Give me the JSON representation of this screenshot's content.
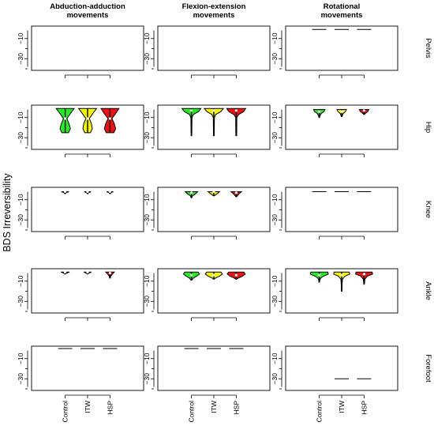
{
  "chart_data": {
    "type": "violin",
    "ylabel": "BDS Irreversibility",
    "columns": [
      "Abduction-adduction\nmovements",
      "Flexion-extension\nmovements",
      "Rotational\nmovements"
    ],
    "rows": [
      "Pelvis",
      "Hip",
      "Knee",
      "Ankle",
      "Forefoot"
    ],
    "groups": [
      "Control",
      "ITW",
      "HSP"
    ],
    "group_colors": [
      "#22ee22",
      "#f5f500",
      "#f01010"
    ],
    "yticks": [
      -10,
      -30
    ],
    "ylim": [
      -40,
      0
    ],
    "panels": [
      [
        {
          "violins": []
        },
        {
          "violins": []
        },
        {
          "violins": [
            {
              "group": "Control",
              "kind": "line",
              "value": -1
            },
            {
              "group": "ITW",
              "kind": "line",
              "value": -1
            },
            {
              "group": "HSP",
              "kind": "line",
              "value": -1
            }
          ]
        }
      ],
      [
        {
          "violins": [
            {
              "group": "Control",
              "kind": "violin",
              "top": -1,
              "bottom": -25,
              "median": -11,
              "profile": [
                [
                  -1,
                  0.95
                ],
                [
                  -6,
                  0.55
                ],
                [
                  -11,
                  0.18
                ],
                [
                  -16,
                  0.4
                ],
                [
                  -21,
                  0.55
                ],
                [
                  -25,
                  0.35
                ]
              ]
            },
            {
              "group": "ITW",
              "kind": "violin",
              "top": -1,
              "bottom": -25,
              "median": -11,
              "profile": [
                [
                  -1,
                  0.95
                ],
                [
                  -6,
                  0.55
                ],
                [
                  -11,
                  0.18
                ],
                [
                  -16,
                  0.4
                ],
                [
                  -21,
                  0.5
                ],
                [
                  -25,
                  0.3
                ]
              ]
            },
            {
              "group": "HSP",
              "kind": "violin",
              "top": -1,
              "bottom": -25,
              "median": -11,
              "profile": [
                [
                  -1,
                  0.95
                ],
                [
                  -6,
                  0.6
                ],
                [
                  -11,
                  0.2
                ],
                [
                  -16,
                  0.45
                ],
                [
                  -21,
                  0.6
                ],
                [
                  -25,
                  0.4
                ]
              ]
            }
          ]
        },
        {
          "violins": [
            {
              "group": "Control",
              "kind": "violin",
              "top": -1,
              "bottom": -28,
              "median": -3,
              "profile": [
                [
                  -1,
                  1
                ],
                [
                  -4,
                  0.75
                ],
                [
                  -7,
                  0.2
                ],
                [
                  -10,
                  0.06
                ],
                [
                  -25,
                  0.04
                ],
                [
                  -28,
                  0.03
                ]
              ]
            },
            {
              "group": "ITW",
              "kind": "violin",
              "top": -1,
              "bottom": -28,
              "median": -3,
              "profile": [
                [
                  -1,
                  1
                ],
                [
                  -4,
                  0.75
                ],
                [
                  -7,
                  0.2
                ],
                [
                  -10,
                  0.06
                ],
                [
                  -25,
                  0.04
                ],
                [
                  -28,
                  0.03
                ]
              ]
            },
            {
              "group": "HSP",
              "kind": "violin",
              "top": -1,
              "bottom": -28,
              "median": -3,
              "profile": [
                [
                  -1,
                  1
                ],
                [
                  -4,
                  0.8
                ],
                [
                  -7,
                  0.25
                ],
                [
                  -10,
                  0.06
                ],
                [
                  -25,
                  0.05
                ],
                [
                  -28,
                  0.04
                ]
              ]
            }
          ]
        },
        {
          "violins": [
            {
              "group": "Control",
              "kind": "violin",
              "top": -2,
              "bottom": -10,
              "median": -4,
              "profile": [
                [
                  -2,
                  0.6
                ],
                [
                  -4,
                  0.5
                ],
                [
                  -6,
                  0.2
                ],
                [
                  -8,
                  0.08
                ],
                [
                  -10,
                  0.03
                ]
              ]
            },
            {
              "group": "ITW",
              "kind": "violin",
              "top": -2,
              "bottom": -9,
              "median": -4,
              "profile": [
                [
                  -2,
                  0.5
                ],
                [
                  -4,
                  0.4
                ],
                [
                  -6,
                  0.15
                ],
                [
                  -9,
                  0.03
                ]
              ]
            },
            {
              "group": "HSP",
              "kind": "violin",
              "top": -2,
              "bottom": -7,
              "median": -3,
              "profile": [
                [
                  -2,
                  0.5
                ],
                [
                  -4,
                  0.4
                ],
                [
                  -6,
                  0.12
                ],
                [
                  -7,
                  0.03
                ]
              ]
            }
          ]
        }
      ],
      [
        {
          "violins": [
            {
              "group": "Control",
              "kind": "violin",
              "top": -2,
              "bottom": -4,
              "median": -2,
              "profile": [
                [
                  -2,
                  0.4
                ],
                [
                  -3,
                  0.1
                ],
                [
                  -4,
                  0.03
                ]
              ]
            },
            {
              "group": "ITW",
              "kind": "violin",
              "top": -2,
              "bottom": -4,
              "median": -2,
              "profile": [
                [
                  -2,
                  0.35
                ],
                [
                  -3,
                  0.1
                ],
                [
                  -4,
                  0.03
                ]
              ]
            },
            {
              "group": "HSP",
              "kind": "violin",
              "top": -2,
              "bottom": -4,
              "median": -2,
              "profile": [
                [
                  -2,
                  0.35
                ],
                [
                  -3,
                  0.1
                ],
                [
                  -4,
                  0.03
                ]
              ]
            }
          ]
        },
        {
          "violins": [
            {
              "group": "Control",
              "kind": "violin",
              "top": -2,
              "bottom": -8,
              "median": -3,
              "profile": [
                [
                  -2,
                  0.65
                ],
                [
                  -4,
                  0.45
                ],
                [
                  -6,
                  0.12
                ],
                [
                  -8,
                  0.03
                ]
              ]
            },
            {
              "group": "ITW",
              "kind": "violin",
              "top": -2,
              "bottom": -6,
              "median": -2,
              "profile": [
                [
                  -2,
                  0.6
                ],
                [
                  -4,
                  0.35
                ],
                [
                  -6,
                  0.05
                ]
              ]
            },
            {
              "group": "HSP",
              "kind": "violin",
              "top": -2,
              "bottom": -7,
              "median": -3,
              "profile": [
                [
                  -2,
                  0.55
                ],
                [
                  -4,
                  0.3
                ],
                [
                  -7,
                  0.04
                ]
              ]
            }
          ]
        },
        {
          "violins": [
            {
              "group": "Control",
              "kind": "line",
              "value": -2
            },
            {
              "group": "ITW",
              "kind": "line",
              "value": -2
            },
            {
              "group": "HSP",
              "kind": "line",
              "value": -2
            }
          ]
        }
      ],
      [
        {
          "violins": [
            {
              "group": "Control",
              "kind": "violin",
              "top": -1,
              "bottom": -3,
              "median": -1,
              "profile": [
                [
                  -1,
                  0.45
                ],
                [
                  -2,
                  0.15
                ],
                [
                  -3,
                  0.03
                ]
              ]
            },
            {
              "group": "ITW",
              "kind": "violin",
              "top": -1,
              "bottom": -3,
              "median": -1,
              "profile": [
                [
                  -1,
                  0.4
                ],
                [
                  -2,
                  0.15
                ],
                [
                  -3,
                  0.03
                ]
              ]
            },
            {
              "group": "HSP",
              "kind": "violin",
              "top": -1,
              "bottom": -7,
              "median": -2,
              "profile": [
                [
                  -1,
                  0.45
                ],
                [
                  -3,
                  0.25
                ],
                [
                  -5,
                  0.08
                ],
                [
                  -7,
                  0.03
                ]
              ]
            }
          ]
        },
        {
          "violins": [
            {
              "group": "Control",
              "kind": "violin",
              "top": -1,
              "bottom": -9,
              "median": -4,
              "profile": [
                [
                  -1,
                  0.7
                ],
                [
                  -3,
                  0.85
                ],
                [
                  -5,
                  0.55
                ],
                [
                  -7,
                  0.2
                ],
                [
                  -9,
                  0.04
                ]
              ]
            },
            {
              "group": "ITW",
              "kind": "violin",
              "top": -1,
              "bottom": -8,
              "median": -4,
              "profile": [
                [
                  -1,
                  0.75
                ],
                [
                  -3,
                  0.9
                ],
                [
                  -5,
                  0.6
                ],
                [
                  -7,
                  0.15
                ],
                [
                  -8,
                  0.04
                ]
              ]
            },
            {
              "group": "HSP",
              "kind": "violin",
              "top": -1,
              "bottom": -8,
              "median": -4,
              "profile": [
                [
                  -1,
                  0.8
                ],
                [
                  -3,
                  0.95
                ],
                [
                  -5,
                  0.65
                ],
                [
                  -7,
                  0.2
                ],
                [
                  -8,
                  0.04
                ]
              ]
            }
          ]
        },
        {
          "violins": [
            {
              "group": "Control",
              "kind": "violin",
              "top": -1,
              "bottom": -11,
              "median": -4,
              "profile": [
                [
                  -1,
                  0.9
                ],
                [
                  -3,
                  0.95
                ],
                [
                  -5,
                  0.45
                ],
                [
                  -7,
                  0.15
                ],
                [
                  -9,
                  0.06
                ],
                [
                  -11,
                  0.03
                ]
              ]
            },
            {
              "group": "ITW",
              "kind": "violin",
              "top": -1,
              "bottom": -20,
              "median": -4,
              "profile": [
                [
                  -1,
                  0.8
                ],
                [
                  -3,
                  0.85
                ],
                [
                  -5,
                  0.35
                ],
                [
                  -8,
                  0.08
                ],
                [
                  -14,
                  0.04
                ],
                [
                  -20,
                  0.03
                ]
              ]
            },
            {
              "group": "HSP",
              "kind": "violin",
              "top": -1,
              "bottom": -13,
              "median": -3,
              "profile": [
                [
                  -1,
                  0.85
                ],
                [
                  -3,
                  0.9
                ],
                [
                  -5,
                  0.35
                ],
                [
                  -8,
                  0.08
                ],
                [
                  -13,
                  0.03
                ]
              ]
            }
          ]
        }
      ],
      [
        {
          "violins": [
            {
              "group": "Control",
              "kind": "line",
              "value": 0
            },
            {
              "group": "ITW",
              "kind": "line",
              "value": 0
            },
            {
              "group": "HSP",
              "kind": "line",
              "value": 0
            }
          ]
        },
        {
          "violins": [
            {
              "group": "Control",
              "kind": "line",
              "value": 0
            },
            {
              "group": "ITW",
              "kind": "line",
              "value": 0
            },
            {
              "group": "HSP",
              "kind": "line",
              "value": 0
            }
          ]
        },
        {
          "violins": [
            {
              "group": "ITW",
              "kind": "line",
              "value": -30
            },
            {
              "group": "HSP",
              "kind": "line",
              "value": -30
            }
          ]
        }
      ]
    ]
  }
}
